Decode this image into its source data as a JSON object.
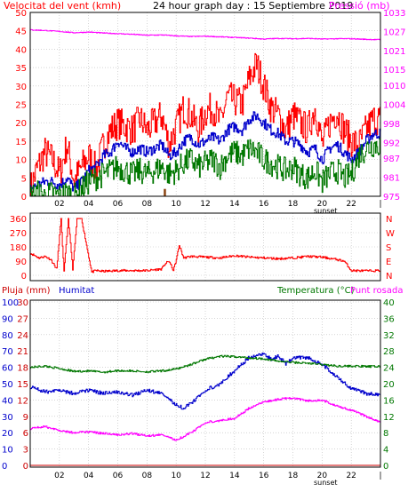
{
  "colors": {
    "red": "#ff0000",
    "magenta": "#ff00ff",
    "blue": "#0000cc",
    "green": "#007700",
    "dark_red": "#cc0000",
    "grid": "#bbbbbb",
    "frame": "#000000",
    "burst_brown": "#8b4513"
  },
  "chart_data": [
    {
      "type": "line",
      "title": "24 hour graph day : 15 Septiembre 2019",
      "left_axis_label": "Velocitat del vent (kmh)",
      "right_axis_label": "Pressió (mb)",
      "y_ticks": [
        "0",
        "5",
        "10",
        "15",
        "20",
        "25",
        "30",
        "35",
        "40",
        "45",
        "50"
      ],
      "y_range": [
        0,
        50
      ],
      "right_ticks": [
        "975",
        "981",
        "987",
        "992",
        "998",
        "1004",
        "1010",
        "1015",
        "1021",
        "1027",
        "1033"
      ],
      "right_range": [
        975,
        1033
      ],
      "x_ticks": [
        "02",
        "04",
        "06",
        "08",
        "10",
        "12",
        "14",
        "16",
        "18",
        "20",
        "22"
      ],
      "x_marker": "sunset",
      "x_range_hours": [
        0,
        24
      ],
      "grid": true,
      "series": [
        {
          "key": "gust",
          "color": "red",
          "hours": [
            0,
            0.5,
            1,
            1.5,
            2,
            2.5,
            3,
            3.5,
            4,
            4.5,
            5,
            5.5,
            6,
            6.5,
            7,
            7.5,
            8,
            8.5,
            9,
            9.5,
            10,
            10.5,
            11,
            11.5,
            12,
            12.5,
            13,
            13.5,
            14,
            14.5,
            15,
            15.5,
            16,
            16.5,
            17,
            17.5,
            18,
            18.5,
            19,
            19.5,
            20,
            20.5,
            21,
            21.5,
            22,
            22.5,
            23,
            23.5
          ],
          "values": [
            2,
            8,
            12,
            10,
            6,
            14,
            4,
            8,
            11,
            7,
            14,
            18,
            20,
            19,
            18,
            21,
            18,
            20,
            22,
            14,
            19,
            24,
            22,
            18,
            23,
            24,
            20,
            27,
            26,
            25,
            32,
            36,
            30,
            24,
            22,
            18,
            22,
            20,
            18,
            24,
            14,
            20,
            23,
            18,
            15,
            14,
            18,
            21
          ]
        },
        {
          "key": "mean",
          "color": "blue",
          "hours": [
            0,
            0.5,
            1,
            1.5,
            2,
            2.5,
            3,
            3.5,
            4,
            4.5,
            5,
            5.5,
            6,
            6.5,
            7,
            7.5,
            8,
            8.5,
            9,
            9.5,
            10,
            10.5,
            11,
            11.5,
            12,
            12.5,
            13,
            13.5,
            14,
            14.5,
            15,
            15.5,
            16,
            16.5,
            17,
            17.5,
            18,
            18.5,
            19,
            19.5,
            20,
            20.5,
            21,
            21.5,
            22,
            22.5,
            23,
            23.5
          ],
          "values": [
            2,
            3,
            4,
            4,
            3,
            5,
            2,
            4,
            7,
            8,
            11,
            12,
            15,
            13,
            12,
            13,
            12,
            13,
            14,
            11,
            12,
            15,
            16,
            14,
            15,
            16,
            15,
            18,
            19,
            18,
            21,
            22,
            20,
            18,
            17,
            15,
            15,
            14,
            12,
            13,
            10,
            13,
            14,
            12,
            10,
            12,
            15,
            17
          ]
        },
        {
          "key": "min",
          "color": "green",
          "hours": [
            0,
            0.5,
            1,
            1.5,
            2,
            2.5,
            3,
            3.5,
            4,
            4.5,
            5,
            5.5,
            6,
            6.5,
            7,
            7.5,
            8,
            8.5,
            9,
            9.5,
            10,
            10.5,
            11,
            11.5,
            12,
            12.5,
            13,
            13.5,
            14,
            14.5,
            15,
            15.5,
            16,
            16.5,
            17,
            17.5,
            18,
            18.5,
            19,
            19.5,
            20,
            20.5,
            21,
            21.5,
            22,
            22.5,
            23,
            23.5
          ],
          "values": [
            0,
            1,
            0,
            1,
            0,
            1,
            0,
            2,
            4,
            5,
            6,
            7,
            8,
            7,
            6,
            7,
            6,
            7,
            8,
            6,
            7,
            9,
            10,
            8,
            9,
            10,
            8,
            11,
            12,
            11,
            13,
            12,
            10,
            9,
            8,
            7,
            8,
            6,
            5,
            7,
            4,
            6,
            7,
            5,
            6,
            11,
            13,
            14
          ]
        },
        {
          "key": "pressure",
          "color": "magenta",
          "unit": "mb",
          "hours": [
            0,
            1,
            2,
            3,
            4,
            5,
            6,
            7,
            8,
            9,
            10,
            11,
            12,
            13,
            14,
            15,
            16,
            17,
            18,
            19,
            20,
            21,
            22,
            23,
            24
          ],
          "values": [
            1027.5,
            1027.3,
            1027,
            1026.6,
            1026.8,
            1026.5,
            1026.3,
            1026.1,
            1025.8,
            1025.9,
            1025.6,
            1025.4,
            1025.5,
            1025.3,
            1025.1,
            1024.9,
            1024.6,
            1024.8,
            1024.7,
            1024.8,
            1024.6,
            1024.7,
            1024.7,
            1024.5,
            1024.4
          ]
        }
      ]
    },
    {
      "type": "line",
      "y_ticks": [
        "360",
        "270",
        "180",
        "90",
        "0"
      ],
      "y_range": [
        0,
        360
      ],
      "right_ticks": [
        "N",
        "W",
        "S",
        "E",
        "N"
      ],
      "series": [
        {
          "key": "direction",
          "color": "red",
          "hours": [
            0,
            0.6,
            1,
            1.4,
            1.8,
            2.1,
            2.3,
            2.6,
            2.9,
            3.2,
            3.5,
            4.2,
            4.5,
            5,
            6,
            7,
            8,
            9,
            9.2,
            9.5,
            9.8,
            10,
            10.2,
            10.5,
            11,
            12,
            13,
            14,
            15,
            16,
            17,
            18,
            19,
            20,
            21,
            21.5,
            22,
            23,
            24
          ],
          "values": [
            140,
            110,
            120,
            100,
            40,
            360,
            20,
            360,
            40,
            360,
            360,
            20,
            30,
            25,
            30,
            30,
            30,
            40,
            70,
            90,
            30,
            100,
            190,
            110,
            120,
            115,
            110,
            125,
            115,
            110,
            105,
            110,
            120,
            115,
            100,
            90,
            30,
            28,
            30
          ]
        }
      ]
    },
    {
      "type": "line",
      "left_label_a": "Pluja (mm)",
      "left_label_b": "Humitat",
      "right_label_a": "Temperatura (°C)",
      "right_label_b": "Punt rosada",
      "rain_ticks": [
        "0",
        "3",
        "6",
        "9",
        "12",
        "15",
        "18",
        "21",
        "24",
        "27",
        "30"
      ],
      "rain_range": [
        0,
        30
      ],
      "humidity_ticks": [
        "0",
        "10",
        "20",
        "30",
        "40",
        "50",
        "60",
        "70",
        "80",
        "90",
        "100"
      ],
      "humidity_range": [
        0,
        100
      ],
      "temp_ticks": [
        "0",
        "4",
        "8",
        "12",
        "16",
        "20",
        "24",
        "28",
        "32",
        "36",
        "40"
      ],
      "temp_range": [
        0,
        40
      ],
      "x_ticks": [
        "02",
        "04",
        "06",
        "08",
        "10",
        "12",
        "14",
        "16",
        "18",
        "20",
        "22"
      ],
      "x_marker": "sunset",
      "series": [
        {
          "key": "rain",
          "color": "dark_red",
          "hours": [
            0,
            24
          ],
          "values": [
            0,
            0
          ]
        },
        {
          "key": "humidity",
          "color": "blue",
          "hours": [
            0,
            1,
            2,
            3,
            4,
            5,
            6,
            7,
            8,
            9,
            10,
            10.5,
            11,
            12,
            13,
            14,
            15,
            16,
            16.5,
            17,
            17.5,
            18,
            19,
            20,
            21,
            22,
            23,
            24
          ],
          "values": [
            48,
            45,
            46,
            44,
            46,
            44,
            45,
            43,
            46,
            44,
            37,
            35,
            38,
            46,
            50,
            58,
            66,
            68,
            65,
            67,
            62,
            66,
            66,
            62,
            54,
            47,
            44,
            43
          ]
        },
        {
          "key": "temperature",
          "color": "green",
          "hours": [
            0,
            1,
            2,
            3,
            4,
            5,
            6,
            7,
            8,
            9,
            10,
            11,
            12,
            13,
            14,
            15,
            16,
            17,
            18,
            19,
            20,
            21,
            22,
            23,
            24
          ],
          "values": [
            24,
            24.3,
            23.7,
            23,
            23.1,
            22.8,
            23.2,
            23.1,
            22.9,
            23.1,
            23.6,
            24.7,
            26,
            26.7,
            26.6,
            26.3,
            26.1,
            25.5,
            25.2,
            25,
            24.7,
            24.3,
            24.3,
            24.2,
            24.2
          ]
        },
        {
          "key": "dewpoint",
          "color": "magenta",
          "hours": [
            0,
            1,
            2,
            3,
            4,
            5,
            6,
            7,
            8,
            9,
            10,
            11,
            12,
            13,
            14,
            15,
            16,
            17,
            18,
            19,
            20,
            21,
            22,
            23,
            24
          ],
          "values": [
            9,
            9.5,
            8.5,
            8,
            8.2,
            7.8,
            7.5,
            7.8,
            7.2,
            7.5,
            6.2,
            8,
            10.5,
            11,
            11.5,
            14,
            15.5,
            16.2,
            16.5,
            15.8,
            16,
            14.5,
            13.5,
            12,
            10.5
          ]
        }
      ]
    }
  ]
}
